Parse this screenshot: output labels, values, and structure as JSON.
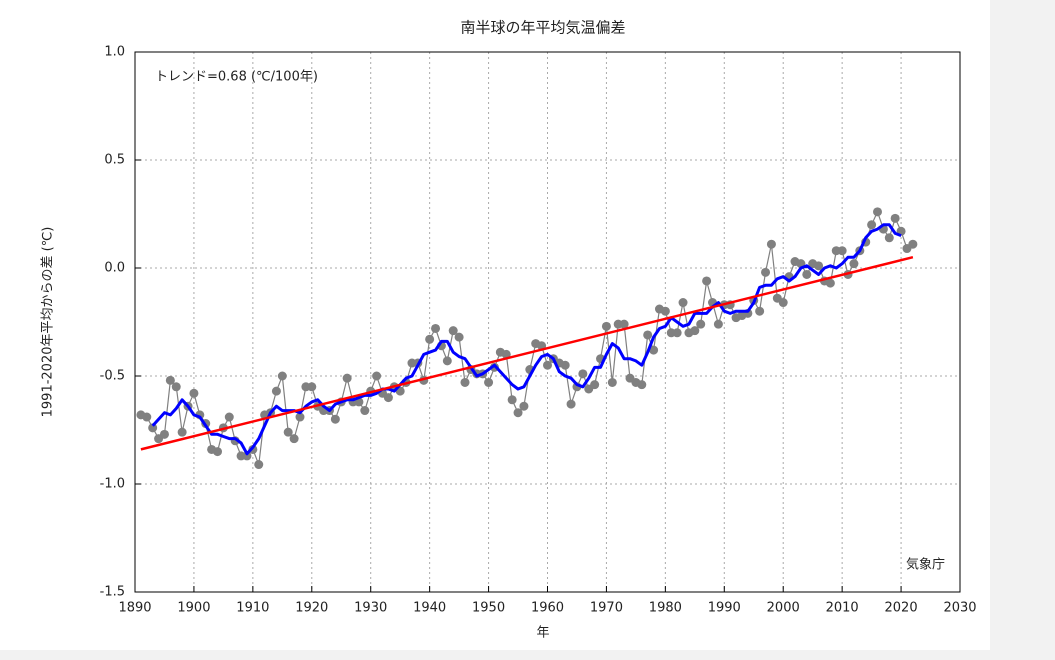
{
  "chart_data": {
    "type": "line",
    "title": "南半球の年平均気温偏差",
    "annotation": "トレンド=0.68 (℃/100年)",
    "source": "気象庁",
    "x_label": "年",
    "y_label": "1991-2020年平均からの差 (℃)",
    "xlim": [
      1890,
      2030
    ],
    "xticks": [
      1890,
      1900,
      1910,
      1920,
      1930,
      1940,
      1950,
      1960,
      1970,
      1980,
      1990,
      2000,
      2010,
      2020,
      2030
    ],
    "ylim": [
      -1.5,
      1.0
    ],
    "yticks": [
      -1.5,
      {
        "value": -1.0,
        "label": "-1.0"
      },
      -0.5,
      {
        "value": 0.0,
        "label": "0.0"
      },
      0.5,
      {
        "value": 1.0,
        "label": "1.0"
      }
    ],
    "grid": true,
    "x": [
      1891,
      1892,
      1893,
      1894,
      1895,
      1896,
      1897,
      1898,
      1899,
      1900,
      1901,
      1902,
      1903,
      1904,
      1905,
      1906,
      1907,
      1908,
      1909,
      1910,
      1911,
      1912,
      1913,
      1914,
      1915,
      1916,
      1917,
      1918,
      1919,
      1920,
      1921,
      1922,
      1923,
      1924,
      1925,
      1926,
      1927,
      1928,
      1929,
      1930,
      1931,
      1932,
      1933,
      1934,
      1935,
      1936,
      1937,
      1938,
      1939,
      1940,
      1941,
      1942,
      1943,
      1944,
      1945,
      1946,
      1947,
      1948,
      1949,
      1950,
      1951,
      1952,
      1953,
      1954,
      1955,
      1956,
      1957,
      1958,
      1959,
      1960,
      1961,
      1962,
      1963,
      1964,
      1965,
      1966,
      1967,
      1968,
      1969,
      1970,
      1971,
      1972,
      1973,
      1974,
      1975,
      1976,
      1977,
      1978,
      1979,
      1980,
      1981,
      1982,
      1983,
      1984,
      1985,
      1986,
      1987,
      1988,
      1989,
      1990,
      1991,
      1992,
      1993,
      1994,
      1995,
      1996,
      1997,
      1998,
      1999,
      2000,
      2001,
      2002,
      2003,
      2004,
      2005,
      2006,
      2007,
      2008,
      2009,
      2010,
      2011,
      2012,
      2013,
      2014,
      2015,
      2016,
      2017,
      2018,
      2019,
      2020,
      2021,
      2022
    ],
    "series": [
      {
        "color": "#808080",
        "values": [
          -0.68,
          -0.69,
          -0.74,
          -0.79,
          -0.77,
          -0.52,
          -0.55,
          -0.76,
          -0.64,
          -0.58,
          -0.68,
          -0.72,
          -0.84,
          -0.85,
          -0.74,
          -0.69,
          -0.8,
          -0.87,
          -0.87,
          -0.84,
          -0.91,
          -0.68,
          -0.67,
          -0.57,
          -0.5,
          -0.76,
          -0.79,
          -0.69,
          -0.55,
          -0.55,
          -0.64,
          -0.66,
          -0.66,
          -0.7,
          -0.62,
          -0.51,
          -0.62,
          -0.62,
          -0.66,
          -0.57,
          -0.5,
          -0.58,
          -0.6,
          -0.55,
          -0.57,
          -0.53,
          -0.44,
          -0.44,
          -0.52,
          -0.33,
          -0.28,
          -0.36,
          -0.43,
          -0.29,
          -0.32,
          -0.53,
          -0.47,
          -0.49,
          -0.49,
          -0.53,
          -0.46,
          -0.39,
          -0.4,
          -0.61,
          -0.67,
          -0.64,
          -0.47,
          -0.35,
          -0.36,
          -0.45,
          -0.42,
          -0.44,
          -0.45,
          -0.63,
          -0.55,
          -0.49,
          -0.56,
          -0.54,
          -0.42,
          -0.27,
          -0.53,
          -0.26,
          -0.26,
          -0.51,
          -0.53,
          -0.54,
          -0.31,
          -0.38,
          -0.19,
          -0.2,
          -0.3,
          -0.3,
          -0.16,
          -0.3,
          -0.29,
          -0.26,
          -0.06,
          -0.16,
          -0.26,
          -0.17,
          -0.17,
          -0.23,
          -0.22,
          -0.21,
          -0.15,
          -0.2,
          -0.02,
          0.11,
          -0.14,
          -0.16,
          -0.04,
          0.03,
          0.02,
          -0.03,
          0.02,
          0.01,
          -0.06,
          -0.07,
          0.08,
          0.08,
          -0.03,
          0.02,
          0.08,
          0.12,
          0.2,
          0.26,
          0.18,
          0.14,
          0.23,
          0.17,
          0.09,
          0.11
        ]
      },
      {
        "color": "#0000ff",
        "values": [
          null,
          null,
          -0.73,
          -0.7,
          -0.67,
          -0.68,
          -0.65,
          -0.61,
          -0.64,
          -0.68,
          -0.69,
          -0.73,
          -0.77,
          -0.77,
          -0.78,
          -0.79,
          -0.79,
          -0.81,
          -0.86,
          -0.83,
          -0.79,
          -0.73,
          -0.67,
          -0.64,
          -0.66,
          -0.66,
          -0.66,
          -0.67,
          -0.64,
          -0.62,
          -0.61,
          -0.64,
          -0.66,
          -0.63,
          -0.62,
          -0.61,
          -0.61,
          -0.6,
          -0.59,
          -0.59,
          -0.58,
          -0.56,
          -0.56,
          -0.57,
          -0.54,
          -0.51,
          -0.5,
          -0.45,
          -0.4,
          -0.39,
          -0.38,
          -0.34,
          -0.34,
          -0.39,
          -0.41,
          -0.42,
          -0.46,
          -0.5,
          -0.49,
          -0.47,
          -0.45,
          -0.48,
          -0.51,
          -0.54,
          -0.56,
          -0.55,
          -0.5,
          -0.45,
          -0.41,
          -0.4,
          -0.42,
          -0.48,
          -0.5,
          -0.51,
          -0.54,
          -0.55,
          -0.51,
          -0.46,
          -0.46,
          -0.4,
          -0.35,
          -0.37,
          -0.42,
          -0.42,
          -0.43,
          -0.45,
          -0.39,
          -0.32,
          -0.28,
          -0.27,
          -0.23,
          -0.25,
          -0.27,
          -0.26,
          -0.21,
          -0.21,
          -0.21,
          -0.18,
          -0.16,
          -0.2,
          -0.21,
          -0.2,
          -0.2,
          -0.2,
          -0.16,
          -0.09,
          -0.08,
          -0.08,
          -0.05,
          -0.04,
          -0.06,
          -0.04,
          0.0,
          0.01,
          -0.01,
          -0.03,
          0.0,
          0.01,
          0.0,
          0.02,
          0.05,
          0.05,
          0.08,
          0.14,
          0.17,
          0.18,
          0.2,
          0.2,
          0.16,
          0.15,
          null,
          null
        ]
      }
    ],
    "trend": {
      "color": "#ff0000",
      "x": [
        1891,
        2022
      ],
      "values": [
        -0.84,
        0.05
      ]
    }
  }
}
